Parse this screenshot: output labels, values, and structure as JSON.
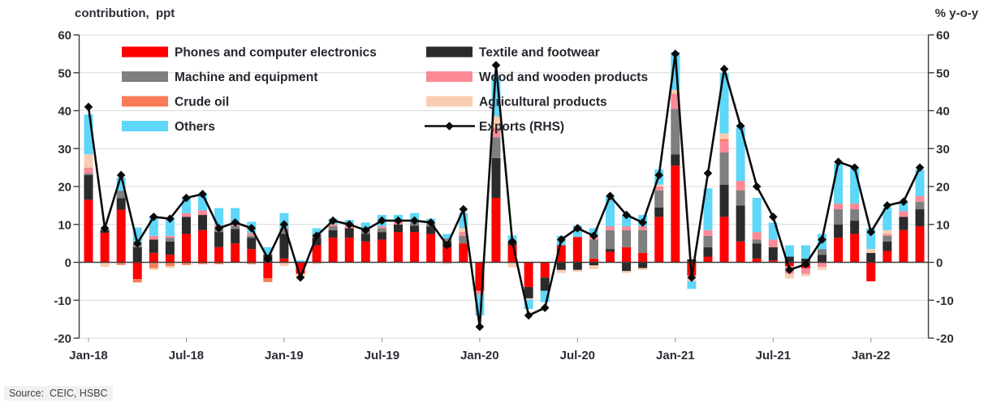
{
  "header": {
    "left_axis_title": "contribution,  ppt",
    "right_axis_title": "% y-o-y"
  },
  "source": {
    "text": "Source:  CEIC, HSBC"
  },
  "chart_data": {
    "type": "combo: stacked monthly bars (contribution, ppt, LHS) + line with diamond markers (exports % y-o-y, RHS)",
    "title": "",
    "xlabel": "",
    "ylabel_left": "contribution, ppt",
    "ylabel_right": "% y-o-y",
    "left_axis": {
      "min": -20,
      "max": 60,
      "step": 10
    },
    "right_axis": {
      "min": -20,
      "max": 60,
      "step": 10
    },
    "grid": true,
    "legend_position": "top-left, two columns",
    "x_tick_labels": [
      "Jan-18",
      "Jul-18",
      "Jan-19",
      "Jul-19",
      "Jan-20",
      "Jul-20",
      "Jan-21",
      "Jul-21",
      "Jan-22"
    ],
    "categories": [
      "Jan-18",
      "Feb-18",
      "Mar-18",
      "Apr-18",
      "May-18",
      "Jun-18",
      "Jul-18",
      "Aug-18",
      "Sep-18",
      "Oct-18",
      "Nov-18",
      "Dec-18",
      "Jan-19",
      "Feb-19",
      "Mar-19",
      "Apr-19",
      "May-19",
      "Jun-19",
      "Jul-19",
      "Aug-19",
      "Sep-19",
      "Oct-19",
      "Nov-19",
      "Dec-19",
      "Jan-20",
      "Feb-20",
      "Mar-20",
      "Apr-20",
      "May-20",
      "Jun-20",
      "Jul-20",
      "Aug-20",
      "Sep-20",
      "Oct-20",
      "Nov-20",
      "Dec-20",
      "Jan-21",
      "Feb-21",
      "Mar-21",
      "Apr-21",
      "May-21",
      "Jun-21",
      "Jul-21",
      "Aug-21",
      "Sep-21",
      "Oct-21",
      "Nov-21",
      "Dec-21",
      "Jan-22",
      "Feb-22",
      "Mar-22",
      "Apr-22"
    ],
    "series": [
      {
        "name": "Phones and computer electronics",
        "type": "bar",
        "color": "#fe0101",
        "values": [
          16.5,
          7.8,
          13.9,
          -4.4,
          2.5,
          2.0,
          7.5,
          8.5,
          4.0,
          5.0,
          3.5,
          -4.2,
          1.0,
          -3.0,
          4.5,
          6.5,
          6.5,
          5.5,
          6.0,
          8.0,
          8.0,
          7.5,
          4.0,
          5.0,
          -7.5,
          17.0,
          4.5,
          -6.5,
          -4.0,
          4.5,
          6.7,
          1.0,
          2.8,
          4.0,
          2.5,
          12.0,
          25.5,
          -3.5,
          1.5,
          12.0,
          5.5,
          1.0,
          0.5,
          -1.0,
          -1.5,
          0.0,
          6.5,
          7.5,
          -5.0,
          3.0,
          8.5,
          9.5
        ]
      },
      {
        "name": "Textile and footwear",
        "type": "bar",
        "color": "#2b2b2b",
        "values": [
          6.5,
          0.8,
          3.0,
          4.0,
          3.5,
          3.5,
          4.5,
          4.0,
          4.0,
          3.8,
          3.0,
          2.0,
          6.5,
          0.0,
          2.0,
          2.0,
          2.5,
          2.0,
          2.0,
          2.0,
          1.7,
          2.0,
          1.5,
          0.0,
          0.0,
          10.5,
          1.0,
          -3.0,
          -3.5,
          -2.0,
          -2.0,
          -0.8,
          0.7,
          -2.3,
          -1.5,
          2.5,
          3.0,
          0.8,
          2.5,
          8.5,
          9.5,
          4.0,
          3.5,
          1.5,
          1.0,
          2.0,
          3.5,
          3.5,
          2.5,
          2.5,
          3.5,
          4.5
        ]
      },
      {
        "name": "Machine and equipment",
        "type": "bar",
        "color": "#7f7f7f",
        "values": [
          0.5,
          0,
          2.0,
          0.8,
          0,
          1.0,
          0,
          0,
          0.8,
          0.8,
          0.5,
          0,
          1.5,
          0,
          1.0,
          1.0,
          0,
          1.0,
          1.0,
          0,
          0.8,
          0.8,
          0.8,
          2.0,
          0,
          5.5,
          0,
          0,
          0,
          0,
          0,
          5.0,
          5.0,
          4.5,
          6.0,
          4.5,
          12.0,
          0,
          3.0,
          8.5,
          4.0,
          1.0,
          0,
          0,
          0,
          1.5,
          4.0,
          3.0,
          0,
          1.5,
          0,
          2.0
        ]
      },
      {
        "name": "Wood and wooden products",
        "type": "bar",
        "color": "#fb8a96",
        "values": [
          1.5,
          0,
          0,
          0,
          1.0,
          0.5,
          1.0,
          1.2,
          1.0,
          0.7,
          0.7,
          0,
          0,
          0,
          0,
          0.5,
          0.7,
          0.5,
          0.5,
          0.7,
          0,
          0,
          0,
          1.0,
          -1.0,
          2.5,
          0,
          0,
          0,
          0,
          0,
          1.0,
          1.0,
          1.0,
          1.0,
          1.0,
          4.0,
          0,
          1.5,
          3.0,
          2.5,
          2.0,
          2.0,
          -2.0,
          -1.5,
          -1.2,
          1.5,
          1.5,
          0,
          0.5,
          1.5,
          1.5
        ]
      },
      {
        "name": "Crude oil",
        "type": "bar",
        "color": "#f97c57",
        "values": [
          0,
          0,
          -0.7,
          -0.9,
          -1.5,
          -1.0,
          -0.7,
          -0.5,
          -0.5,
          0,
          -0.5,
          -1.0,
          0,
          0,
          0,
          0,
          0,
          0,
          0,
          0,
          0,
          0,
          0,
          0,
          0,
          0,
          0,
          0,
          0,
          0,
          0,
          0,
          0,
          0,
          0,
          0,
          0,
          0,
          0,
          0.5,
          0,
          0,
          0,
          0,
          0,
          0,
          0,
          0,
          0,
          0,
          0,
          0
        ]
      },
      {
        "name": "Agricultural products",
        "type": "bar",
        "color": "#facdb2",
        "values": [
          3.5,
          -1.2,
          0,
          0,
          -0.5,
          -0.5,
          0,
          0,
          0,
          0,
          0,
          0,
          -1.0,
          -1.0,
          -0.5,
          0,
          0,
          0,
          0,
          0,
          0,
          0,
          -0.5,
          1.0,
          0,
          3.0,
          -1.3,
          -0.3,
          0,
          -0.8,
          -0.5,
          -1.0,
          0,
          -0.5,
          -0.5,
          0.5,
          1.0,
          -1.5,
          0,
          1.5,
          0,
          0,
          0,
          -1.3,
          -0.7,
          -0.8,
          0,
          0,
          1.0,
          1.0,
          0,
          0
        ]
      },
      {
        "name": "Others",
        "type": "bar",
        "color": "#5ed7f9",
        "values": [
          10.5,
          0,
          3.5,
          4.4,
          5.0,
          4.8,
          4.0,
          4.5,
          4.5,
          4.0,
          3.0,
          2.0,
          4.0,
          0.5,
          1.5,
          1.5,
          1.5,
          1.5,
          3.0,
          1.8,
          2.5,
          1.2,
          1.2,
          4.0,
          -5.5,
          11.0,
          1.6,
          -2.5,
          -3.0,
          2.5,
          3.0,
          2.0,
          7.8,
          3.0,
          3.0,
          4.0,
          10.0,
          -2.0,
          11.0,
          16.0,
          14.5,
          9.0,
          4.5,
          3.0,
          3.5,
          4.0,
          10.5,
          9.5,
          5.5,
          6.0,
          2.5,
          7.0
        ]
      },
      {
        "name": "Exports (RHS)",
        "type": "line",
        "axis": "right",
        "color": "#0a0a0a",
        "values": [
          41,
          9,
          23,
          5,
          12,
          11.5,
          17,
          18,
          9,
          10.5,
          9,
          1,
          10,
          -4,
          7,
          11,
          10,
          8.5,
          11,
          11,
          11,
          10.5,
          4.5,
          14,
          -17,
          52,
          5.5,
          -14,
          -12,
          6,
          9,
          7,
          17.5,
          12.5,
          10.5,
          23,
          55,
          -4,
          23.5,
          51,
          36,
          20,
          12,
          -2,
          -0.5,
          6,
          26.5,
          25,
          8,
          15,
          16,
          25
        ]
      }
    ]
  }
}
